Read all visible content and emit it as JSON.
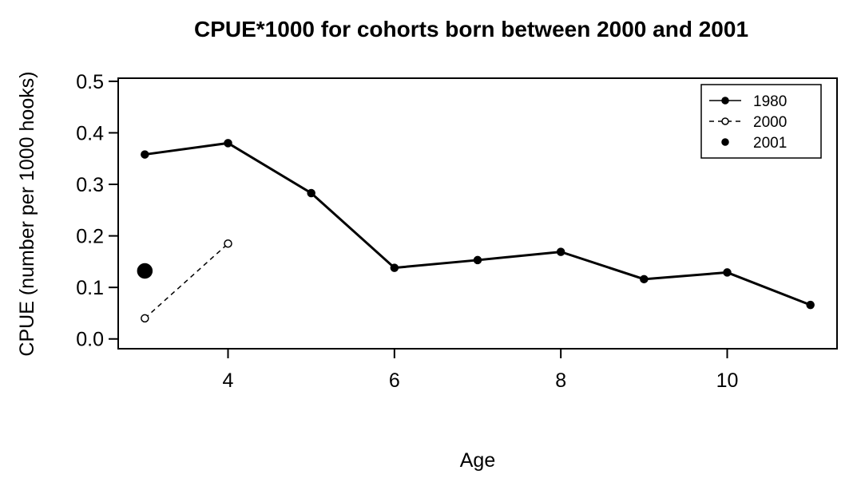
{
  "chart_data": {
    "type": "line",
    "title": "CPUE*1000 for cohorts born between 2000 and 2001",
    "x_label": "Age",
    "y_label": "CPUE (number per 1000 hooks)",
    "x": [
      3,
      4,
      5,
      6,
      7,
      8,
      9,
      10,
      11
    ],
    "series": [
      {
        "name": "1980",
        "color": "#000000",
        "linestyle": "solid",
        "marker": "filled",
        "values": [
          0.358,
          0.38,
          0.283,
          0.138,
          0.153,
          0.169,
          0.116,
          0.129,
          0.066
        ]
      },
      {
        "name": "2000",
        "color": "#000000",
        "linestyle": "dashed",
        "marker": "open",
        "values": [
          0.04,
          0.185,
          null,
          null,
          null,
          null,
          null,
          null,
          null
        ]
      },
      {
        "name": "2001",
        "color": "#000000",
        "linestyle": "none",
        "marker": "large",
        "values": [
          0.132,
          null,
          null,
          null,
          null,
          null,
          null,
          null,
          null
        ]
      }
    ],
    "xlim": [
      2.68,
      11.32
    ],
    "ylim": [
      -0.019,
      0.506
    ],
    "xticks": [
      4,
      6,
      8,
      10
    ],
    "yticks": [
      {
        "value": 0,
        "label": "0.0"
      },
      0.1,
      0.2,
      0.3,
      0.4,
      0.5
    ],
    "legend": "top-right",
    "grid": false
  }
}
